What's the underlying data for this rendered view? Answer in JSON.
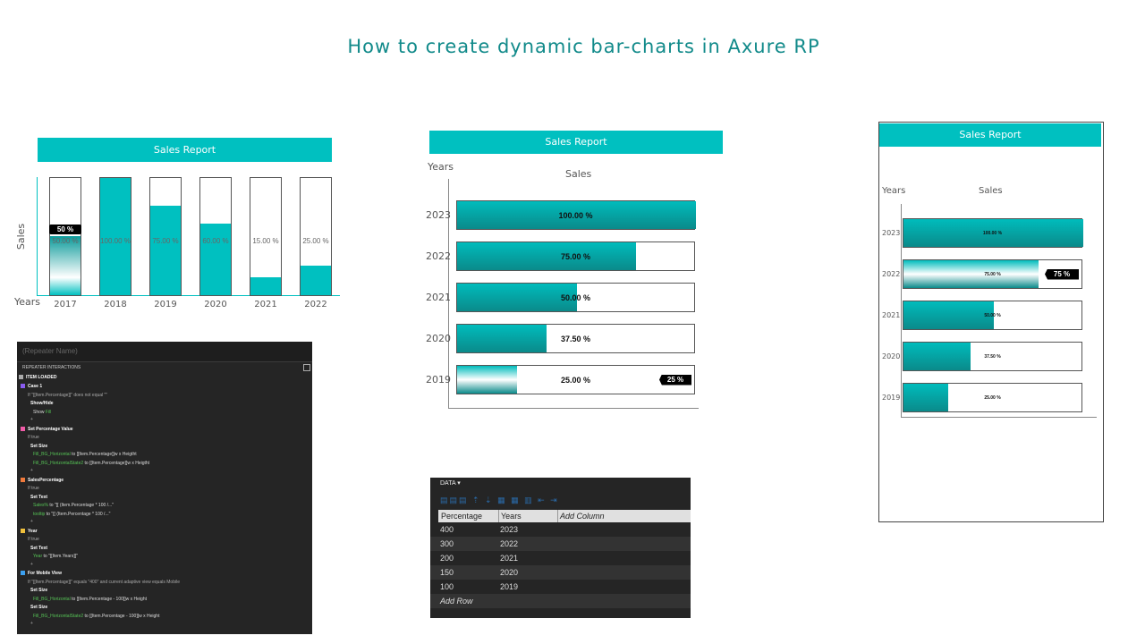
{
  "title": "How to create dynamic bar-charts in Axure RP",
  "chart_vertical": {
    "header": "Sales Report",
    "ylabel": "Sales",
    "xlabel": "Years",
    "bars": [
      {
        "year": "2017",
        "label": "50.00 %",
        "value": 50,
        "tooltip": "50 %"
      },
      {
        "year": "2018",
        "label": "100.00 %",
        "value": 100
      },
      {
        "year": "2019",
        "label": "75.00 %",
        "value": 75
      },
      {
        "year": "2020",
        "label": "60.00 %",
        "value": 60
      },
      {
        "year": "2021",
        "label": "15.00 %",
        "value": 15
      },
      {
        "year": "2022",
        "label": "25.00 %",
        "value": 25
      }
    ]
  },
  "chart_horizontal": {
    "header": "Sales Report",
    "ylabel": "Years",
    "xlabel": "Sales",
    "bars": [
      {
        "year": "2023",
        "label": "100.00 %",
        "value": 100
      },
      {
        "year": "2022",
        "label": "75.00 %",
        "value": 75
      },
      {
        "year": "2021",
        "label": "50.00 %",
        "value": 50
      },
      {
        "year": "2020",
        "label": "37.50 %",
        "value": 37.5
      },
      {
        "year": "2019",
        "label": "25.00 %",
        "value": 25,
        "tooltip": "25 %"
      }
    ]
  },
  "chart_mobile": {
    "header": "Sales Report",
    "ylabel": "Years",
    "xlabel": "Sales",
    "bars": [
      {
        "year": "2023",
        "label": "100.00 %",
        "value": 100
      },
      {
        "year": "2022",
        "label": "75.00 %",
        "value": 75,
        "tooltip": "75 %"
      },
      {
        "year": "2021",
        "label": "50.00 %",
        "value": 50
      },
      {
        "year": "2020",
        "label": "37.50 %",
        "value": 37.5
      },
      {
        "year": "2019",
        "label": "25.00 %",
        "value": 25
      }
    ]
  },
  "interactions_panel": {
    "name_placeholder": "(Repeater Name)",
    "section": "REPEATER INTERACTIONS",
    "event": "ITEM LOADED",
    "lines": [
      {
        "type": "case",
        "color": "#8a5cf0",
        "text": "Case 1"
      },
      {
        "type": "cond",
        "text": "If \"[[Item.Percentage]]\" does not equal \"\""
      },
      {
        "type": "act",
        "text": "Show/Hide"
      },
      {
        "type": "target",
        "green": "Fill",
        "prefix": "Show ",
        "text": ""
      },
      {
        "type": "plus",
        "text": "+"
      },
      {
        "type": "case",
        "color": "#f05ca8",
        "text": "Set Percentage Value"
      },
      {
        "type": "cond",
        "text": "If true"
      },
      {
        "type": "act",
        "text": "Set Size"
      },
      {
        "type": "target",
        "green": "Fill_BG_Horizontal",
        "prefix": "",
        "text": " to [[Item.Percentage]]w x Heigtht"
      },
      {
        "type": "target",
        "green": "Fill_BG_HorizontalState2",
        "prefix": "",
        "text": " to [[Item.Percentage]]w x Heigtht"
      },
      {
        "type": "plus",
        "text": "+"
      },
      {
        "type": "case",
        "color": "#f07a3c",
        "text": "SalesPercentage"
      },
      {
        "type": "cond",
        "text": "If true"
      },
      {
        "type": "act",
        "text": "Set Text"
      },
      {
        "type": "target",
        "green": "Sales%",
        "prefix": "",
        "text": " to \"[[ (Item.Percentage * 100 /...\""
      },
      {
        "type": "target",
        "green": "tooltip",
        "prefix": "",
        "text": " to \"[[ (Item.Percentage * 100 /...\""
      },
      {
        "type": "plus",
        "text": "+"
      },
      {
        "type": "case",
        "color": "#f0c03c",
        "text": "Year"
      },
      {
        "type": "cond",
        "text": "If true"
      },
      {
        "type": "act",
        "text": "Set Text"
      },
      {
        "type": "target",
        "green": "Year",
        "prefix": "",
        "text": " to \"[[Item.Years]]\""
      },
      {
        "type": "plus",
        "text": "+"
      },
      {
        "type": "case",
        "color": "#3ca0f0",
        "text": "For Mobile View"
      },
      {
        "type": "cond",
        "text": "If \"[[Item.Percentage]]\" equals \"400\" and current adaptive view equals Mobile"
      },
      {
        "type": "act",
        "text": "Set Size"
      },
      {
        "type": "target",
        "green": "Fill_BG_Horizontal",
        "prefix": "",
        "text": " to [[Item.Percentage - 100]]w x Height"
      },
      {
        "type": "act",
        "text": "Set Size"
      },
      {
        "type": "target",
        "green": "Fill_BG_HorizontalState2",
        "prefix": "",
        "text": " to [[Item.Percentage - 100]]w x Height"
      },
      {
        "type": "plus",
        "text": "+"
      }
    ]
  },
  "data_panel": {
    "label": "DATA ▾",
    "columns": [
      "Percentage",
      "Years",
      "Add Column"
    ],
    "rows": [
      [
        "400",
        "2023"
      ],
      [
        "300",
        "2022"
      ],
      [
        "200",
        "2021"
      ],
      [
        "150",
        "2020"
      ],
      [
        "100",
        "2019"
      ]
    ],
    "add_row": "Add Row"
  }
}
